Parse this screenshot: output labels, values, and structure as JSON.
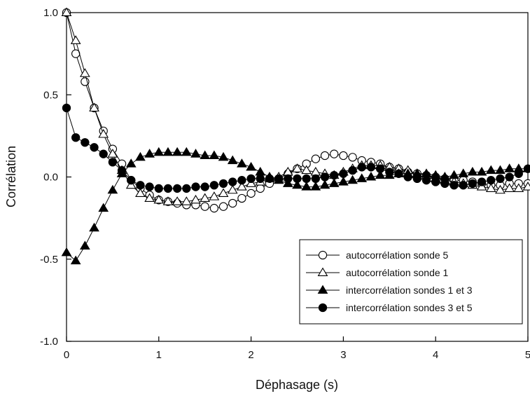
{
  "chart_data": {
    "type": "line",
    "title": "",
    "xlabel": "Déphasage (s)",
    "ylabel": "Corrélation",
    "xlim": [
      0,
      5
    ],
    "ylim": [
      -1.0,
      1.0
    ],
    "x_ticks": [
      0,
      1,
      2,
      3,
      4,
      5
    ],
    "x_tick_labels": [
      "0",
      "1",
      "2",
      "3",
      "4",
      "5"
    ],
    "y_ticks": [
      1.0,
      0.5,
      0.0,
      -0.5,
      -1.0
    ],
    "y_tick_labels": [
      "1.0",
      "0.5",
      "0.0",
      "-0.5",
      "-1.0"
    ],
    "grid": false,
    "legend_position": "bottom-right",
    "x": [
      0,
      0.1,
      0.2,
      0.3,
      0.4,
      0.5,
      0.6,
      0.7,
      0.8,
      0.9,
      1.0,
      1.1,
      1.2,
      1.3,
      1.4,
      1.5,
      1.6,
      1.7,
      1.8,
      1.9,
      2.0,
      2.1,
      2.2,
      2.3,
      2.4,
      2.5,
      2.6,
      2.7,
      2.8,
      2.9,
      3.0,
      3.1,
      3.2,
      3.3,
      3.4,
      3.5,
      3.6,
      3.7,
      3.8,
      3.9,
      4.0,
      4.1,
      4.2,
      4.3,
      4.4,
      4.5,
      4.6,
      4.7,
      4.8,
      4.9,
      5.0
    ],
    "series": [
      {
        "name": "autocorrélation sonde 5",
        "marker": "circle-open",
        "values": [
          1.0,
          0.75,
          0.58,
          0.42,
          0.28,
          0.17,
          0.08,
          -0.02,
          -0.07,
          -0.11,
          -0.14,
          -0.15,
          -0.16,
          -0.17,
          -0.17,
          -0.18,
          -0.19,
          -0.18,
          -0.16,
          -0.13,
          -0.1,
          -0.07,
          -0.04,
          -0.01,
          0.02,
          0.05,
          0.08,
          0.11,
          0.13,
          0.14,
          0.13,
          0.12,
          0.1,
          0.09,
          0.08,
          0.06,
          0.05,
          0.03,
          0.02,
          0.01,
          0.0,
          -0.01,
          -0.02,
          -0.02,
          -0.03,
          -0.04,
          -0.05,
          -0.05,
          -0.04,
          -0.04,
          -0.04
        ]
      },
      {
        "name": "autocorrélation sonde 1",
        "marker": "triangle-open",
        "values": [
          1.0,
          0.83,
          0.63,
          0.42,
          0.26,
          0.14,
          0.04,
          -0.05,
          -0.1,
          -0.13,
          -0.14,
          -0.15,
          -0.15,
          -0.15,
          -0.14,
          -0.13,
          -0.12,
          -0.1,
          -0.08,
          -0.06,
          -0.04,
          -0.03,
          -0.01,
          0.0,
          0.03,
          0.05,
          0.04,
          0.03,
          0.02,
          0.01,
          0.03,
          0.05,
          0.07,
          0.07,
          0.07,
          0.06,
          0.05,
          0.04,
          0.02,
          0.01,
          -0.01,
          -0.02,
          -0.03,
          -0.04,
          -0.05,
          -0.06,
          -0.07,
          -0.08,
          -0.07,
          -0.07,
          -0.06
        ]
      },
      {
        "name": "intercorrélation sondes 1 et 3",
        "marker": "triangle-filled",
        "values": [
          -0.46,
          -0.51,
          -0.42,
          -0.31,
          -0.19,
          -0.08,
          0.02,
          0.08,
          0.12,
          0.14,
          0.15,
          0.15,
          0.15,
          0.15,
          0.14,
          0.13,
          0.13,
          0.12,
          0.1,
          0.08,
          0.06,
          0.03,
          0.0,
          -0.02,
          -0.04,
          -0.05,
          -0.06,
          -0.06,
          -0.05,
          -0.04,
          -0.03,
          -0.02,
          -0.01,
          0.0,
          0.01,
          0.01,
          0.02,
          0.02,
          0.02,
          0.02,
          0.01,
          0.0,
          0.01,
          0.02,
          0.03,
          0.03,
          0.04,
          0.04,
          0.05,
          0.05,
          0.05
        ]
      },
      {
        "name": "intercorrélation sondes 3 et 5",
        "marker": "circle-filled",
        "values": [
          0.42,
          0.24,
          0.21,
          0.18,
          0.14,
          0.09,
          0.04,
          -0.02,
          -0.05,
          -0.06,
          -0.07,
          -0.07,
          -0.07,
          -0.07,
          -0.06,
          -0.06,
          -0.05,
          -0.04,
          -0.03,
          -0.02,
          -0.01,
          -0.01,
          -0.01,
          -0.01,
          -0.01,
          -0.01,
          -0.01,
          -0.01,
          0.0,
          0.01,
          0.02,
          0.04,
          0.06,
          0.06,
          0.05,
          0.03,
          0.02,
          0.0,
          -0.01,
          -0.02,
          -0.03,
          -0.04,
          -0.05,
          -0.05,
          -0.04,
          -0.03,
          -0.02,
          -0.01,
          0.0,
          0.02,
          0.05
        ]
      }
    ]
  }
}
